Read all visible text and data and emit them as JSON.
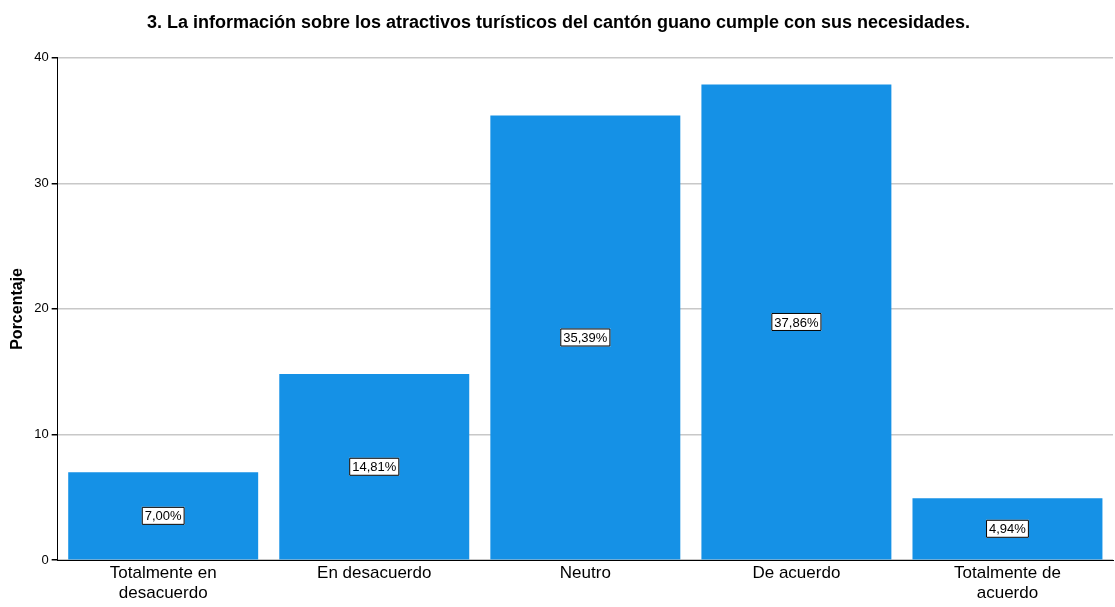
{
  "chart_data": {
    "type": "bar",
    "title": "3. La información sobre los atractivos turísticos del cantón guano cumple con sus necesidades.",
    "ylabel": "Porcentaje",
    "categories": [
      "Totalmente en desacuerdo",
      "En desacuerdo",
      "Neutro",
      "De acuerdo",
      "Totalmente de acuerdo"
    ],
    "values": [
      7.0,
      14.81,
      35.39,
      37.86,
      4.94
    ],
    "value_labels": [
      "7,00%",
      "14,81%",
      "35,39%",
      "37,86%",
      "4,94%"
    ],
    "color": "#1591e6",
    "ylim": [
      0,
      40
    ],
    "yticks": [
      0,
      10,
      20,
      30,
      40
    ],
    "grid": "y"
  }
}
